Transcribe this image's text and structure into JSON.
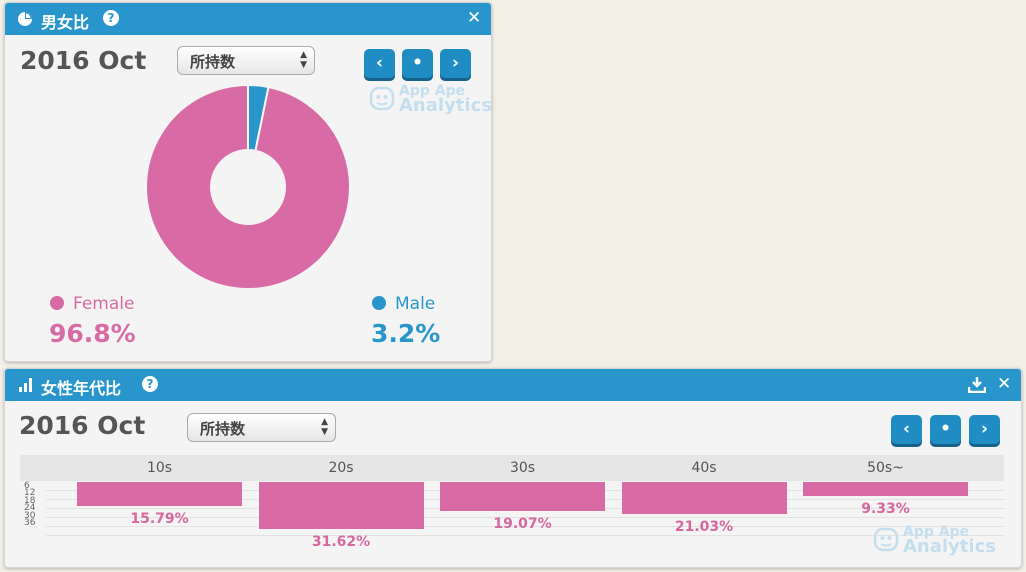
{
  "gender_panel": {
    "title": "男女比",
    "help_icon": "help-icon",
    "period": "2016 Oct",
    "metric_select": {
      "value": "所持数"
    },
    "nav": {
      "prev": "‹",
      "current": "•",
      "next": "›"
    },
    "watermark": {
      "line1": "App Ape",
      "line2": "Analytics"
    },
    "female": {
      "label": "Female",
      "percent": "96.8%",
      "color": "#d86ba5"
    },
    "male": {
      "label": "Male",
      "percent": "3.2%",
      "color": "#2896cc"
    }
  },
  "age_panel": {
    "title": "女性年代比",
    "period": "2016 Oct",
    "metric_select": {
      "value": "所持数"
    },
    "nav": {
      "prev": "‹",
      "current": "•",
      "next": "›"
    },
    "watermark": {
      "line1": "App Ape",
      "line2": "Analytics"
    }
  },
  "chart_data": [
    {
      "type": "pie",
      "categories": [
        "Female",
        "Male"
      ],
      "values": [
        96.8,
        3.2
      ],
      "colors": [
        "#d86ba5",
        "#2896cc"
      ]
    },
    {
      "type": "bar",
      "categories": [
        "10s",
        "20s",
        "30s",
        "40s",
        "50s~"
      ],
      "values": [
        15.79,
        31.62,
        19.07,
        21.03,
        9.33
      ],
      "labels": [
        "15.79%",
        "31.62%",
        "19.07%",
        "21.03%",
        "9.33%"
      ],
      "yticks": [
        "6",
        "12",
        "18",
        "24",
        "30",
        "36"
      ],
      "ylim": [
        0,
        36
      ],
      "orientation": "downward",
      "color": "#d86ba5"
    }
  ]
}
